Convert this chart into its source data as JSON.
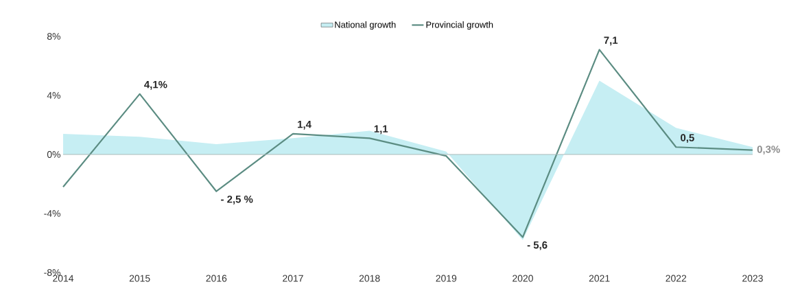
{
  "chart_data": {
    "type": "line",
    "categories": [
      "2014",
      "2015",
      "2016",
      "2017",
      "2018",
      "2019",
      "2020",
      "2021",
      "2022",
      "2023"
    ],
    "series": [
      {
        "name": "National growth",
        "type": "area",
        "color": "#c6eef3",
        "values": [
          1.4,
          1.2,
          0.7,
          1.1,
          1.6,
          0.2,
          -5.8,
          5.0,
          1.8,
          0.5
        ]
      },
      {
        "name": "Provincial growth",
        "color": "#5b8c82",
        "values": [
          -2.2,
          4.1,
          -2.5,
          1.4,
          1.1,
          -0.1,
          -5.6,
          7.1,
          0.5,
          0.3
        ],
        "value_labels": [
          null,
          "4,1%",
          "- 2,5 %",
          "1,4",
          "1,1",
          null,
          "- 5,6",
          "7,1",
          "0,5",
          "0,3%"
        ]
      }
    ],
    "ylim": [
      -8,
      8
    ],
    "yticks": [
      {
        "value": 8,
        "label": "8%"
      },
      {
        "value": 4,
        "label": "4%"
      },
      {
        "value": 0,
        "label": "0%"
      },
      {
        "value": -4,
        "label": "-4%"
      },
      {
        "value": -8,
        "label": "-8%"
      }
    ],
    "ref_lines": [
      {
        "axis": "y",
        "value": 0,
        "color": "#a9b9b9"
      }
    ],
    "grid": false,
    "legend": "top",
    "marker": "none",
    "line_style": "solid"
  }
}
